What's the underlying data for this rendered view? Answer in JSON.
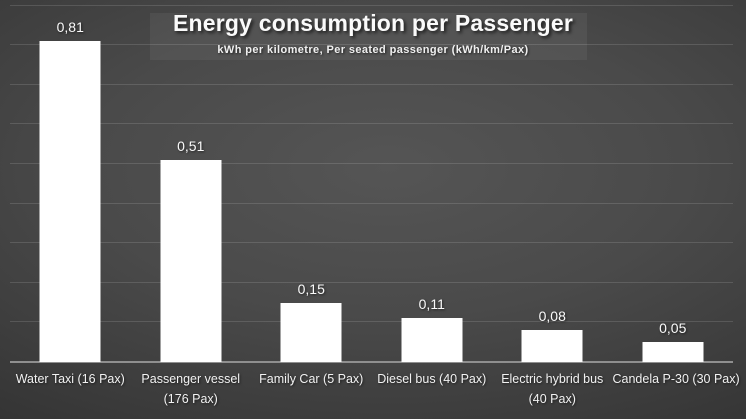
{
  "chart_data": {
    "type": "bar",
    "title": "Energy consumption per Passenger",
    "subtitle": "kWh per kilometre, Per seated passenger (kWh/km/Pax)",
    "categories": [
      "Water Taxi (16 Pax)",
      "Passenger vessel (176 Pax)",
      "Family Car (5 Pax)",
      "Diesel bus (40 Pax)",
      "Electric hybrid bus (40 Pax)",
      "Candela P-30 (30 Pax)"
    ],
    "category_lines": [
      [
        "Water Taxi (16 Pax)"
      ],
      [
        "Passenger vessel",
        "(176 Pax)"
      ],
      [
        "Family Car (5 Pax)"
      ],
      [
        "Diesel bus (40 Pax)"
      ],
      [
        "Electric hybrid bus",
        "(40 Pax)"
      ],
      [
        "Candela P-30 (30 Pax)"
      ]
    ],
    "values": [
      0.81,
      0.51,
      0.15,
      0.11,
      0.08,
      0.05
    ],
    "value_labels": [
      "0,81",
      "0,51",
      "0,15",
      "0,11",
      "0,08",
      "0,05"
    ],
    "xlabel": "",
    "ylabel": "",
    "ylim": [
      0,
      0.9
    ],
    "gridline_interval": 0.1,
    "grid": true,
    "legend": "none",
    "bar_color": "#ffffff",
    "axis_line_color": "#8f8f8f",
    "gridline_color": "rgba(255,255,255,0.13)",
    "text_color": "#f5f5f5",
    "background_center_color": "#535353",
    "background_edge_color": "#262626"
  }
}
